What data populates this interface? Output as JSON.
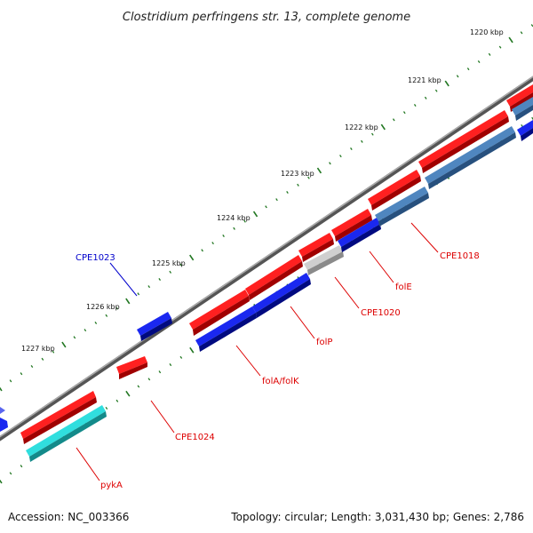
{
  "title": "Clostridium perfringens str. 13, complete genome",
  "ticks": [
    "1220 kbp",
    "1221 kbp",
    "1222 kbp",
    "1223 kbp",
    "1224 kbp",
    "1225 kbp",
    "1226 kbp",
    "1227 kbp"
  ],
  "genes": [
    {
      "name": "CPE1018",
      "color": "#dd0000"
    },
    {
      "name": "folE",
      "color": "#dd0000"
    },
    {
      "name": "CPE1020",
      "color": "#dd0000"
    },
    {
      "name": "folP",
      "color": "#dd0000"
    },
    {
      "name": "folA/folK",
      "color": "#dd0000"
    },
    {
      "name": "CPE1023",
      "color": "#0000cc"
    },
    {
      "name": "CPE1024",
      "color": "#dd0000"
    },
    {
      "name": "pykA",
      "color": "#dd0000"
    }
  ],
  "colors": {
    "forward_cds": "#ff1a1a",
    "reverse_cds": "#0a16e6",
    "steelblue_feature": "#4a7fb5",
    "gray_feature": "#c8c8c8",
    "cyan_feature": "#22cccc",
    "backbone": "#777777",
    "tick": "#227722"
  },
  "footer": {
    "accession": "Accession: NC_003366",
    "summary": "Topology: circular; Length: 3,031,430 bp; Genes: 2,786"
  }
}
